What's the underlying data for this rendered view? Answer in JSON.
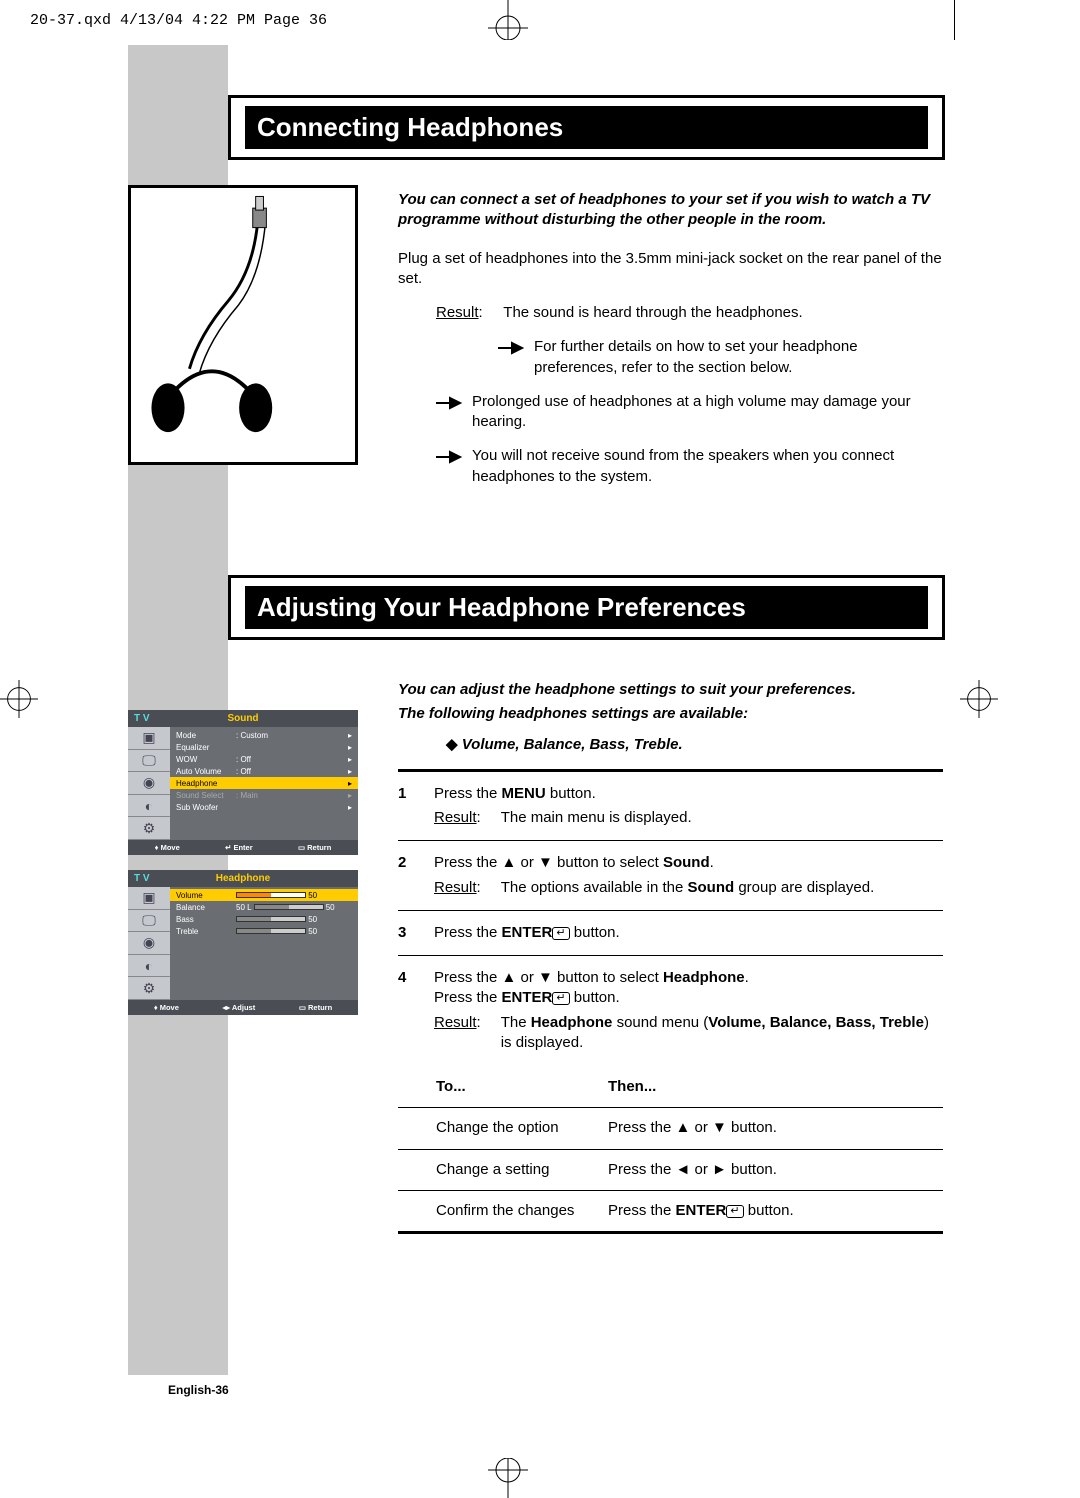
{
  "header_mark": "20-37.qxd  4/13/04 4:22 PM  Page 36",
  "section1": {
    "title": "Connecting Headphones",
    "intro": "You can connect a set of headphones to your set if you wish to watch a TV programme without disturbing the other people in the room.",
    "plug": "Plug a set of headphones into the 3.5mm mini-jack socket on the rear panel of the set.",
    "result_label": "Result",
    "result_text": "The sound is heard through the headphones.",
    "note1": "For further details on how to set your headphone preferences, refer to the section below.",
    "note2": "Prolonged use of headphones at a high volume may damage your hearing.",
    "note3": "You will not receive sound from the speakers when you connect headphones to the system."
  },
  "section2": {
    "title": "Adjusting Your Headphone Preferences",
    "intro1": "You can adjust the headphone settings to suit your preferences.",
    "intro2": "The following headphones settings are available:",
    "settings": "Volume, Balance, Bass, Treble.",
    "colon": ":",
    "steps": [
      {
        "n": "1",
        "body": "Press the <b>MENU</b> button.",
        "result_label": "Result",
        "result": "The main menu is displayed."
      },
      {
        "n": "2",
        "body": "Press the ▲ or ▼ button to select <b>Sound</b>.",
        "result_label": "Result",
        "result": "The options available in the <b>Sound</b> group are displayed."
      },
      {
        "n": "3",
        "body": "Press the <b>ENTER</b><span class=\"enter-icon\">↵</span> button."
      },
      {
        "n": "4",
        "body": "Press the ▲ or ▼ button to select <b>Headphone</b>.<br>Press the <b>ENTER</b><span class=\"enter-icon\">↵</span> button.",
        "result_label": "Result",
        "result": "The <b>Headphone</b> sound menu (<b>Volume, Balance, Bass, Treble</b>) is displayed."
      }
    ],
    "table": {
      "head_to": "To...",
      "head_then": "Then...",
      "rows": [
        {
          "to": "Change the option",
          "then": "Press the ▲ or ▼ button."
        },
        {
          "to": "Change a setting",
          "then": "Press the ◄ or ► button."
        },
        {
          "to": "Confirm the changes",
          "then": "Press the <b>ENTER</b><span class=\"enter-icon\">↵</span> button."
        }
      ]
    }
  },
  "osd1": {
    "tv": "T V",
    "menu": "Sound",
    "rows": [
      {
        "lbl": "Mode",
        "val": ": Custom",
        "arr": "▸"
      },
      {
        "lbl": "Equalizer",
        "val": "",
        "arr": "▸"
      },
      {
        "lbl": "WOW",
        "val": ": Off",
        "arr": "▸"
      },
      {
        "lbl": "Auto Volume",
        "val": ": Off",
        "arr": "▸"
      },
      {
        "lbl": "Headphone",
        "val": "",
        "arr": "▸",
        "hl": true
      },
      {
        "lbl": "Sound Select",
        "val": ": Main",
        "arr": "▸",
        "dim": true
      },
      {
        "lbl": "Sub Woofer",
        "val": "",
        "arr": "▸"
      }
    ],
    "foot": [
      "♦ Move",
      "↵ Enter",
      "▭ Return"
    ]
  },
  "osd2": {
    "tv": "T V",
    "menu": "Headphone",
    "rows": [
      {
        "lbl": "Volume",
        "slider": true,
        "val": "50",
        "hl": true
      },
      {
        "lbl": "Balance",
        "pre": "50",
        "slider": true,
        "val": "50"
      },
      {
        "lbl": "Bass",
        "slider": true,
        "val": "50"
      },
      {
        "lbl": "Treble",
        "slider": true,
        "val": "50"
      }
    ],
    "foot": [
      "♦ Move",
      "◂▸ Adjust",
      "▭ Return"
    ]
  },
  "footer": "English-36"
}
